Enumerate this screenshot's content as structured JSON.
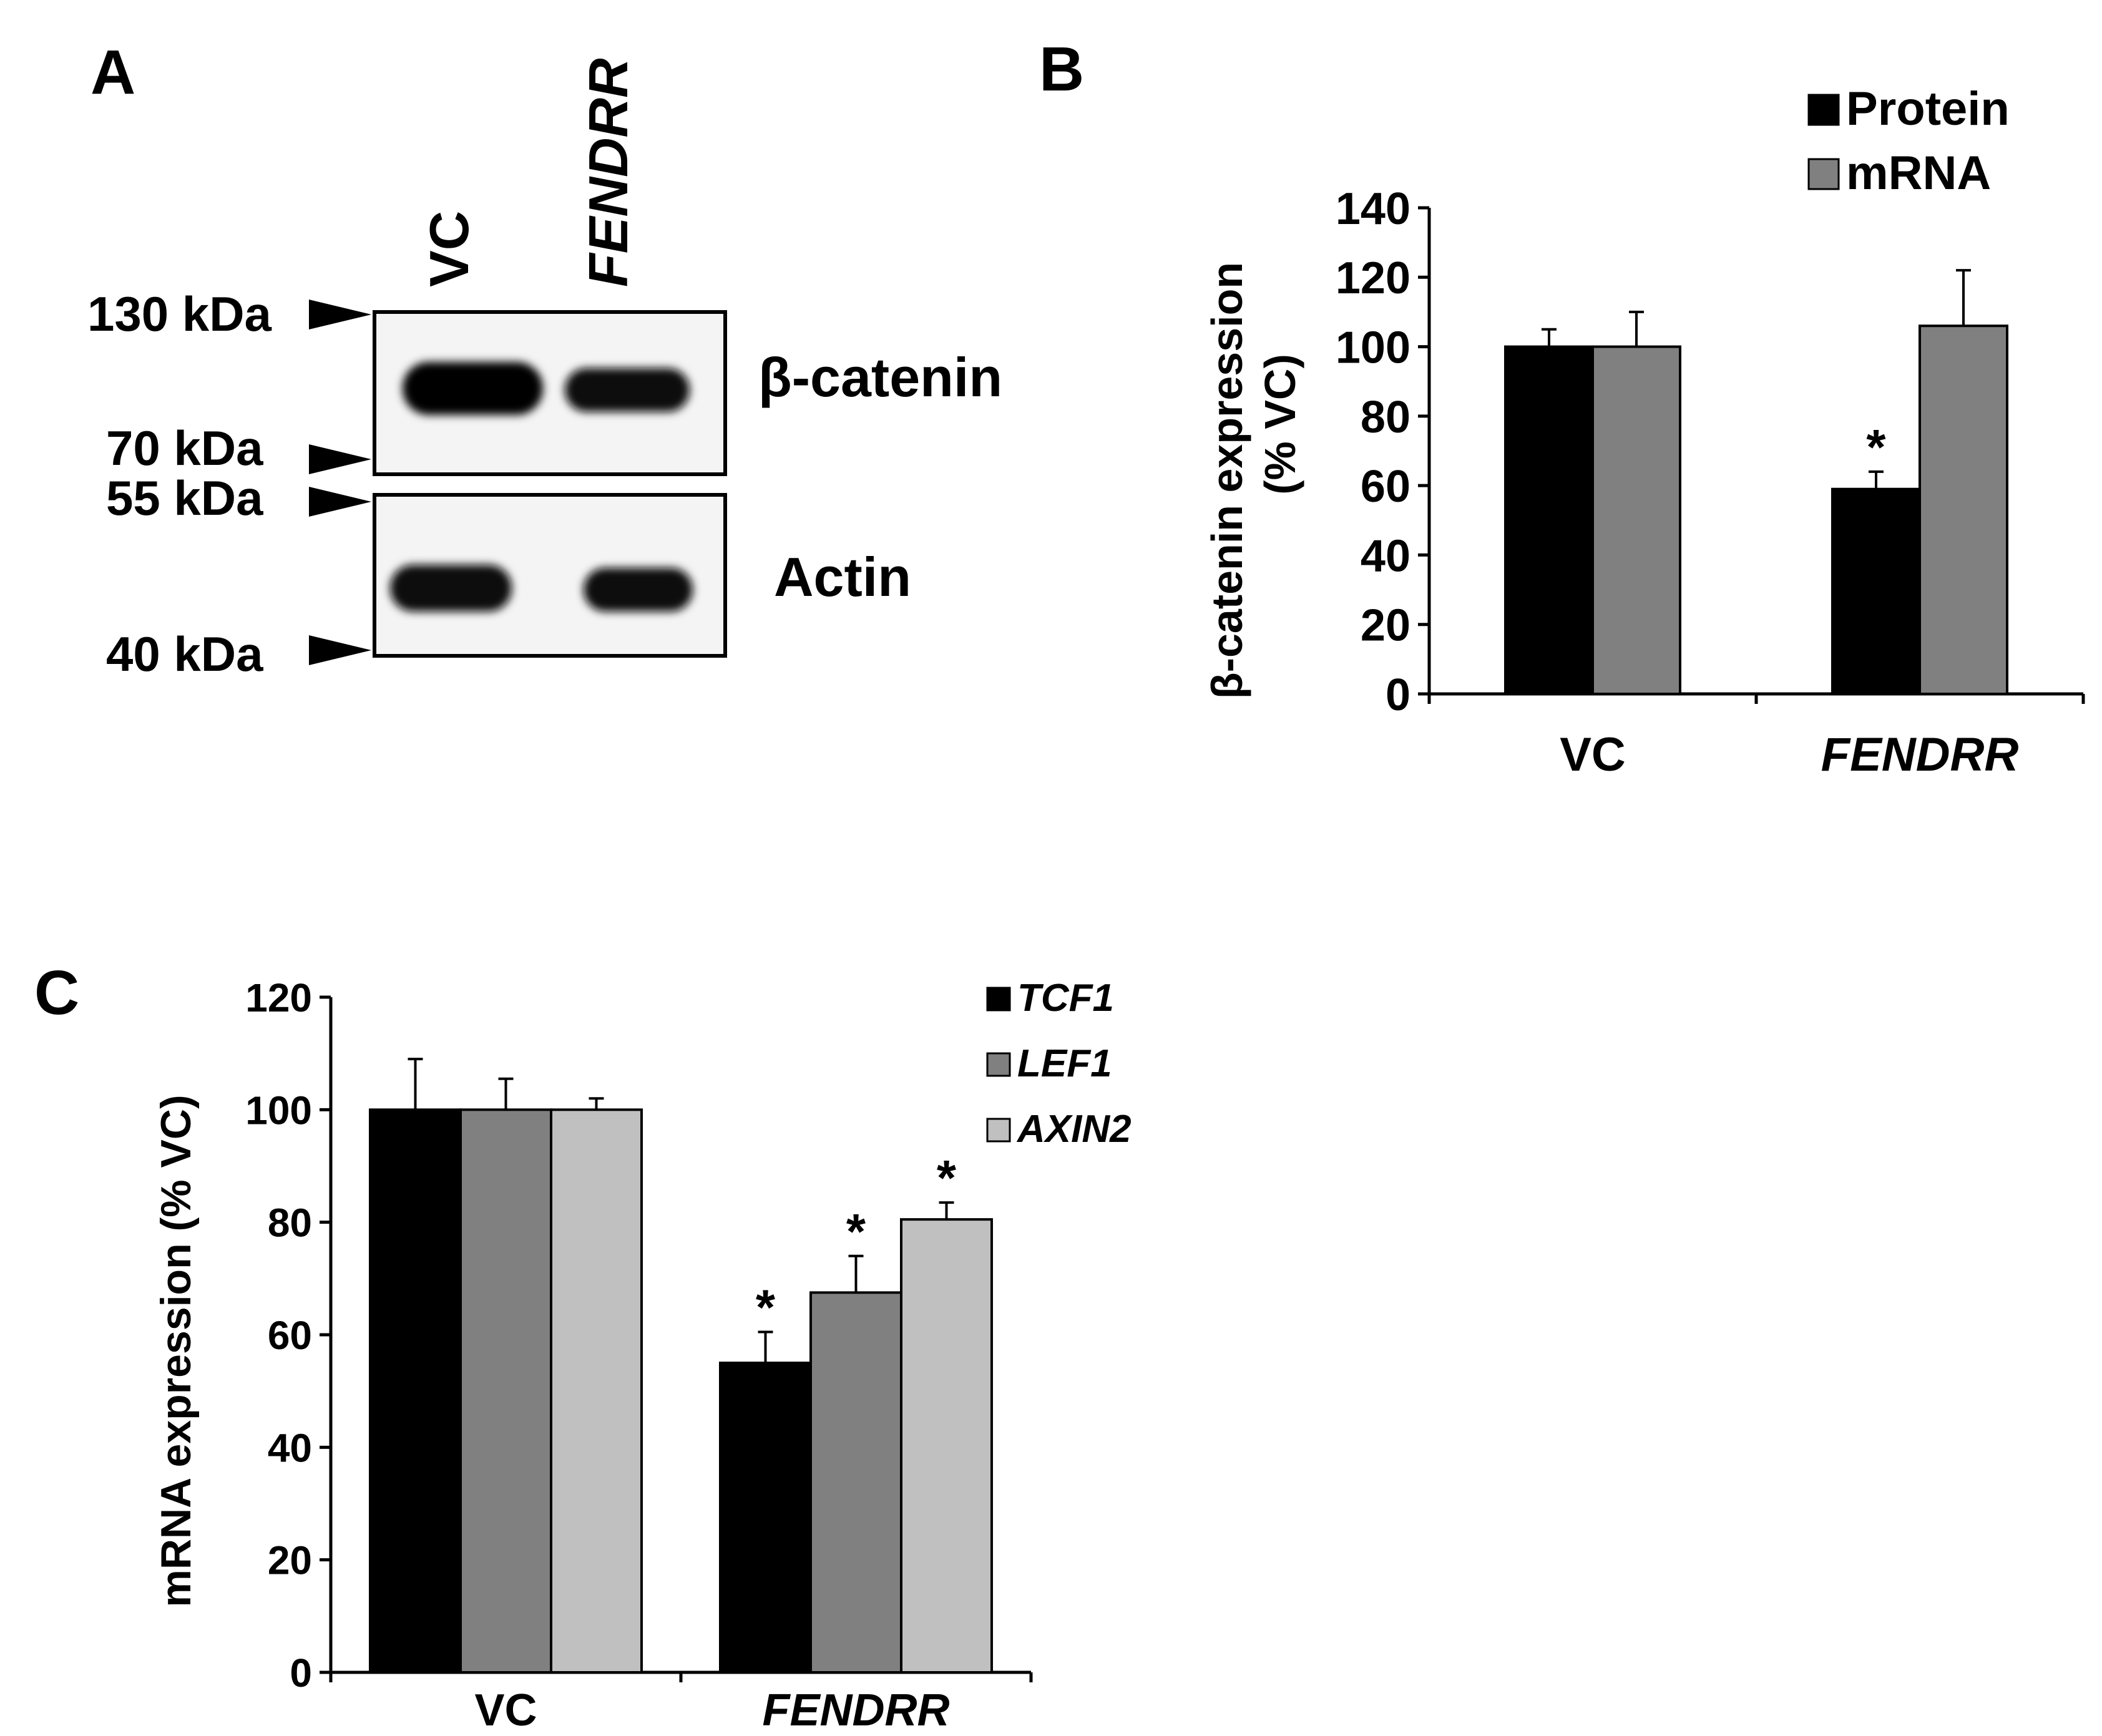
{
  "panelA": {
    "letter": "A",
    "lanes": [
      "VC",
      "FENDRR"
    ],
    "markers": [
      "130 kDa",
      "70 kDa",
      "55 kDa",
      "40 kDa"
    ],
    "bands": [
      "β-catenin",
      "Actin"
    ]
  },
  "chart_data": [
    {
      "panel": "B",
      "type": "bar",
      "categories": [
        "VC",
        "FENDRR"
      ],
      "ylabel_lines": [
        "β-catenin expression",
        "(% VC)"
      ],
      "ylim": [
        0,
        140
      ],
      "yticks": [
        0,
        20,
        40,
        60,
        80,
        100,
        120,
        140
      ],
      "legend_position": "top-right",
      "series": [
        {
          "name": "Protein",
          "color": "#000000",
          "values": [
            100,
            59
          ],
          "errors": [
            5,
            5
          ],
          "significant": [
            false,
            true
          ]
        },
        {
          "name": "mRNA",
          "color": "#808080",
          "values": [
            100,
            106
          ],
          "errors": [
            10,
            16
          ],
          "significant": [
            false,
            false
          ]
        }
      ]
    },
    {
      "panel": "C",
      "type": "bar",
      "categories": [
        "VC",
        "FENDRR"
      ],
      "ylabel": "mRNA expression (% VC)",
      "ylim": [
        0,
        120
      ],
      "yticks": [
        0,
        20,
        40,
        60,
        80,
        100,
        120
      ],
      "legend_position": "top-right",
      "series": [
        {
          "name": "TCF1",
          "color": "#000000",
          "values": [
            100,
            55
          ],
          "errors": [
            9,
            5.5
          ],
          "significant": [
            false,
            true
          ]
        },
        {
          "name": "LEF1",
          "color": "#808080",
          "values": [
            100,
            67.5
          ],
          "errors": [
            5.5,
            6.5
          ],
          "significant": [
            false,
            true
          ]
        },
        {
          "name": "AXIN2",
          "color": "#c0c0c0",
          "values": [
            100,
            80.5
          ],
          "errors": [
            2,
            3
          ],
          "significant": [
            false,
            true
          ]
        }
      ]
    }
  ],
  "significance_marker": "*"
}
